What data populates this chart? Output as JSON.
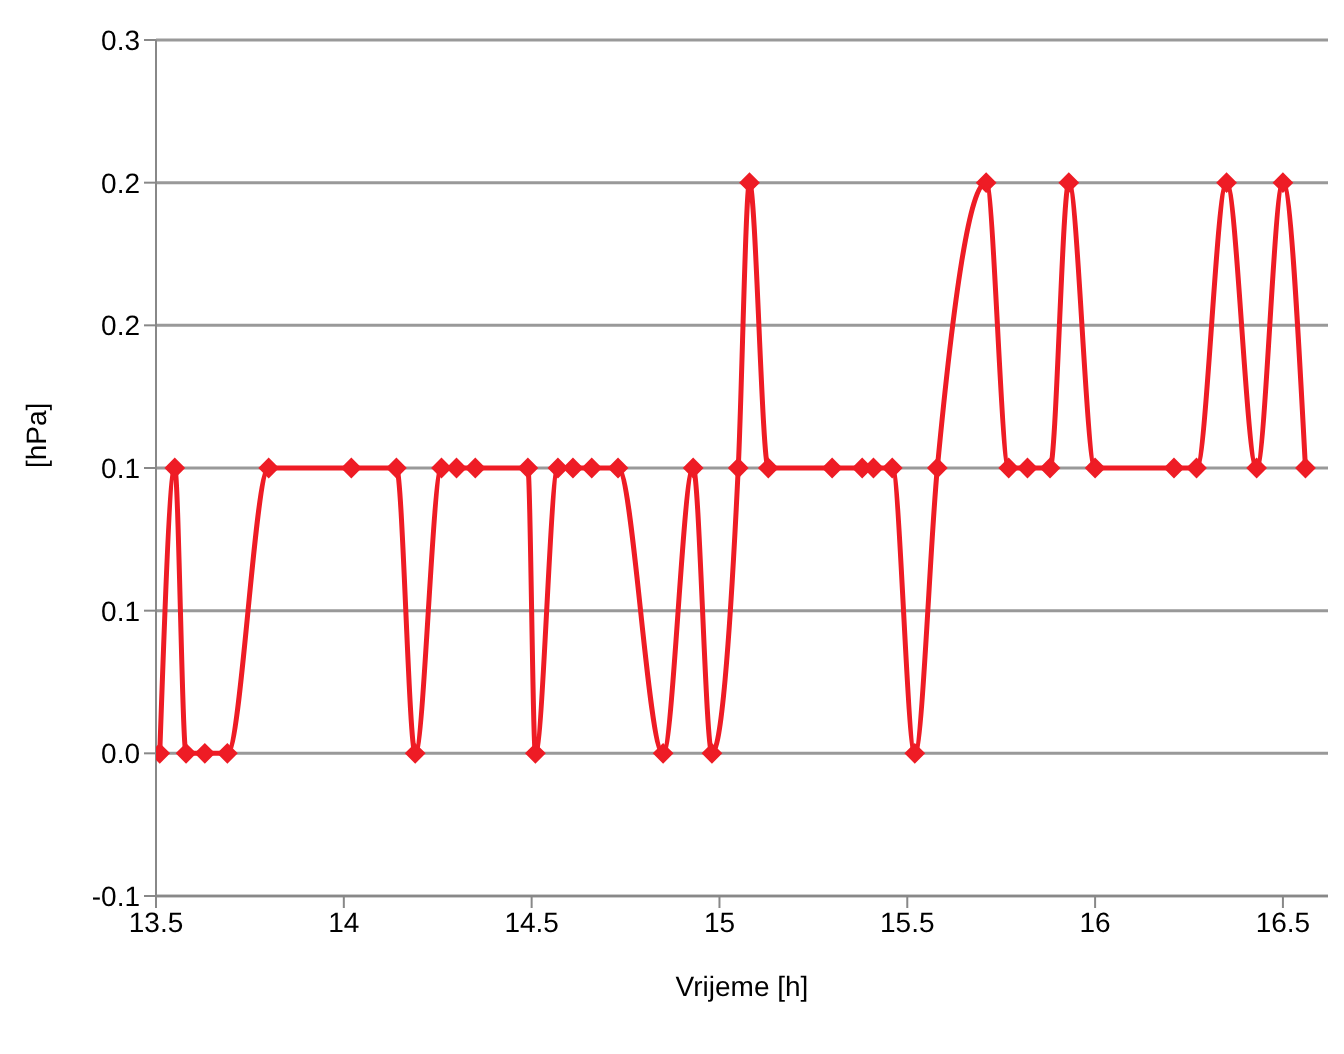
{
  "chart_data": {
    "type": "line",
    "xlabel": "Vrijeme [h]",
    "ylabel": "[hPa]",
    "x": [
      13.51,
      13.55,
      13.58,
      13.63,
      13.69,
      13.8,
      14.02,
      14.14,
      14.19,
      14.26,
      14.3,
      14.35,
      14.49,
      14.51,
      14.57,
      14.61,
      14.66,
      14.73,
      14.85,
      14.93,
      14.98,
      15.05,
      15.08,
      15.13,
      15.3,
      15.38,
      15.41,
      15.46,
      15.52,
      15.58,
      15.71,
      15.77,
      15.82,
      15.88,
      15.93,
      16.0,
      16.21,
      16.27,
      16.35,
      16.43,
      16.5,
      16.56
    ],
    "series": [
      {
        "color": "#ee1c25",
        "values": [
          0,
          0.1,
          0,
          0,
          0,
          0.1,
          0.1,
          0.1,
          0,
          0.1,
          0.1,
          0.1,
          0.1,
          0,
          0.1,
          0.1,
          0.1,
          0.1,
          0,
          0.1,
          0,
          0.1,
          0.2,
          0.1,
          0.1,
          0.1,
          0.1,
          0.1,
          0,
          0.1,
          0.2,
          0.1,
          0.1,
          0.1,
          0.2,
          0.1,
          0.1,
          0.1,
          0.2,
          0.1,
          0.2,
          0.1
        ]
      }
    ],
    "xlim": [
      13.5,
      16.62
    ],
    "xticks": [
      13.5,
      14,
      14.5,
      15,
      15.5,
      16,
      16.5
    ],
    "ylim": [
      -0.05,
      0.25
    ],
    "yticks": [
      {
        "value": -0.05,
        "label": "-0.1"
      },
      {
        "value": 0,
        "label": "0.0"
      },
      {
        "value": 0.05,
        "label": "0.1"
      },
      {
        "value": 0.1,
        "label": "0.1"
      },
      {
        "value": 0.15,
        "label": "0.2"
      },
      {
        "value": 0.2,
        "label": "0.2"
      },
      {
        "value": 0.25,
        "label": "0.3"
      }
    ],
    "grid": "y",
    "marker": "diamond",
    "line_style": "solid",
    "legend": false
  }
}
